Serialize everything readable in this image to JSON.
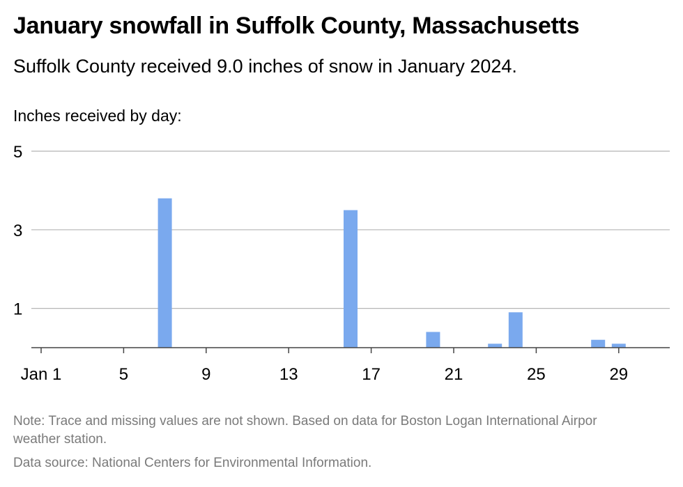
{
  "chart_data": {
    "type": "bar",
    "title": "January snowfall in Suffolk County, Massachusetts",
    "subtitle": "Suffolk County received 9.0 inches of snow in January 2024.",
    "ylabel": "Inches received by day:",
    "xlim": [
      1,
      31
    ],
    "ylim": [
      0,
      5
    ],
    "y_ticks": [
      1,
      3,
      5
    ],
    "x_ticks": [
      {
        "day": 1,
        "label": "Jan 1"
      },
      {
        "day": 5,
        "label": "5"
      },
      {
        "day": 9,
        "label": "9"
      },
      {
        "day": 13,
        "label": "13"
      },
      {
        "day": 17,
        "label": "17"
      },
      {
        "day": 21,
        "label": "21"
      },
      {
        "day": 25,
        "label": "25"
      },
      {
        "day": 29,
        "label": "29"
      }
    ],
    "grid": true,
    "bar_color": "#7aa9ee",
    "days": [
      7,
      16,
      20,
      23,
      24,
      28,
      29
    ],
    "values": [
      3.8,
      3.5,
      0.4,
      0.1,
      0.9,
      0.2,
      0.1
    ]
  },
  "note": "Note: Trace and missing values are not shown. Based on data for Boston Logan International Airpor weather station.",
  "source": "Data source: National Centers for Environmental Information."
}
